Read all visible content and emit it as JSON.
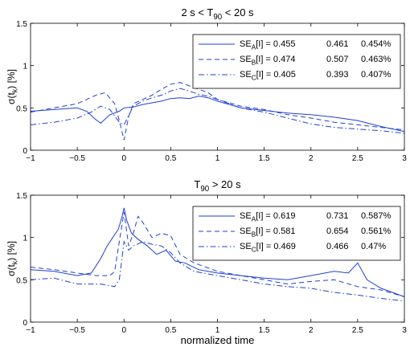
{
  "chart_data": [
    {
      "type": "line",
      "title": {
        "pre": "2 s < T",
        "sub": "90",
        "post": " < 20 s"
      },
      "xlabel": "",
      "ylabel": {
        "pre": "σ(t",
        "sub": "k",
        "post": ") [%]"
      },
      "xlim": [
        -1,
        3
      ],
      "ylim": [
        0,
        1.5
      ],
      "xticks": [
        -1,
        -0.5,
        0,
        0.5,
        1,
        1.5,
        2,
        2.5,
        3
      ],
      "xtick_labels": [
        "−1",
        "−0.5",
        "0",
        "0.5",
        "1",
        "1.5",
        "2",
        "2.5",
        "3"
      ],
      "yticks": [
        0,
        0.5,
        1,
        1.5
      ],
      "ytick_labels": [
        "0",
        "0.5",
        "1",
        "1.5"
      ],
      "grid": false,
      "legend_placement": "top-right",
      "series": [
        {
          "name": "SE_A[I]",
          "label_pre": "SE",
          "label_sub": "A",
          "label_post": "[I] = 0.455",
          "v1": "0.461",
          "v2": "0.454%",
          "color": "#1f3fd6",
          "dash": "solid",
          "x": [
            -1,
            -0.75,
            -0.5,
            -0.4,
            -0.3,
            -0.25,
            -0.15,
            -0.05,
            0,
            0.1,
            0.2,
            0.3,
            0.4,
            0.5,
            0.6,
            0.7,
            0.8,
            0.9,
            1.0,
            1.1,
            1.25,
            1.5,
            1.75,
            2.0,
            2.25,
            2.5,
            2.75,
            3.0
          ],
          "y": [
            0.46,
            0.48,
            0.5,
            0.46,
            0.36,
            0.32,
            0.42,
            0.46,
            0.5,
            0.51,
            0.54,
            0.56,
            0.58,
            0.61,
            0.62,
            0.61,
            0.64,
            0.62,
            0.58,
            0.55,
            0.5,
            0.47,
            0.44,
            0.42,
            0.39,
            0.35,
            0.28,
            0.22
          ]
        },
        {
          "name": "SE_B[I]",
          "label_pre": "SE",
          "label_sub": "B",
          "label_post": "[I] = 0.474",
          "v1": "0.507",
          "v2": "0.463%",
          "color": "#1f3fd6",
          "dash": "6,4",
          "x": [
            -1,
            -0.75,
            -0.5,
            -0.4,
            -0.3,
            -0.2,
            -0.1,
            -0.05,
            0,
            0.05,
            0.1,
            0.2,
            0.3,
            0.4,
            0.5,
            0.6,
            0.7,
            0.8,
            0.9,
            1.0,
            1.25,
            1.5,
            1.75,
            2.0,
            2.25,
            2.5,
            2.75,
            3.0
          ],
          "y": [
            0.45,
            0.5,
            0.55,
            0.6,
            0.65,
            0.68,
            0.55,
            0.35,
            0.12,
            0.4,
            0.55,
            0.6,
            0.65,
            0.72,
            0.78,
            0.8,
            0.76,
            0.72,
            0.68,
            0.6,
            0.52,
            0.48,
            0.42,
            0.38,
            0.33,
            0.3,
            0.27,
            0.24
          ]
        },
        {
          "name": "SE_C[I]",
          "label_pre": "SE",
          "label_sub": "C",
          "label_post": "[I] = 0.405",
          "v1": "0.393",
          "v2": "0.407%",
          "color": "#1f3fd6",
          "dash": "7,3,1.5,3",
          "x": [
            -1,
            -0.75,
            -0.5,
            -0.35,
            -0.25,
            -0.15,
            -0.05,
            0,
            0.1,
            0.2,
            0.3,
            0.4,
            0.5,
            0.6,
            0.7,
            0.8,
            0.9,
            1.0,
            1.25,
            1.5,
            1.75,
            2.0,
            2.25,
            2.5,
            2.75,
            3.0
          ],
          "y": [
            0.3,
            0.33,
            0.38,
            0.45,
            0.52,
            0.48,
            0.33,
            0.3,
            0.52,
            0.58,
            0.62,
            0.65,
            0.7,
            0.73,
            0.7,
            0.66,
            0.64,
            0.6,
            0.5,
            0.45,
            0.38,
            0.31,
            0.27,
            0.25,
            0.23,
            0.2
          ]
        }
      ]
    },
    {
      "type": "line",
      "title": {
        "pre": "T",
        "sub": "90",
        "post": " > 20 s"
      },
      "xlabel": "normalized time",
      "ylabel": {
        "pre": "σ(t",
        "sub": "k",
        "post": ") [%]"
      },
      "xlim": [
        -1,
        3
      ],
      "ylim": [
        0,
        1.5
      ],
      "xticks": [
        -1,
        -0.5,
        0,
        0.5,
        1,
        1.5,
        2,
        2.5,
        3
      ],
      "xtick_labels": [
        "−1",
        "−0.5",
        "0",
        "0.5",
        "1",
        "1.5",
        "2",
        "2.5",
        "3"
      ],
      "yticks": [
        0,
        0.5,
        1,
        1.5
      ],
      "ytick_labels": [
        "0",
        "0.5",
        "1",
        "1.5"
      ],
      "grid": false,
      "legend_placement": "top-right",
      "series": [
        {
          "name": "SE_A[I]",
          "label_pre": "SE",
          "label_sub": "A",
          "label_post": "[I] = 0.619",
          "v1": "0.731",
          "v2": "0.587%",
          "color": "#1f3fd6",
          "dash": "solid",
          "x": [
            -1,
            -0.75,
            -0.5,
            -0.35,
            -0.25,
            -0.18,
            -0.12,
            -0.06,
            -0.02,
            0,
            0.03,
            0.08,
            0.15,
            0.25,
            0.35,
            0.45,
            0.55,
            0.65,
            0.8,
            1.0,
            1.25,
            1.5,
            1.75,
            2.0,
            2.25,
            2.4,
            2.5,
            2.6,
            2.75,
            3.0
          ],
          "y": [
            0.62,
            0.6,
            0.55,
            0.58,
            0.75,
            0.9,
            1.0,
            1.1,
            1.25,
            1.35,
            1.2,
            1.05,
            0.98,
            0.9,
            0.8,
            0.85,
            0.72,
            0.7,
            0.62,
            0.58,
            0.55,
            0.52,
            0.5,
            0.55,
            0.6,
            0.58,
            0.7,
            0.5,
            0.4,
            0.3
          ]
        },
        {
          "name": "SE_B[I]",
          "label_pre": "SE",
          "label_sub": "B",
          "label_post": "[I] = 0.581",
          "v1": "0.654",
          "v2": "0.561%",
          "color": "#1f3fd6",
          "dash": "6,4",
          "x": [
            -1,
            -0.75,
            -0.5,
            -0.3,
            -0.15,
            -0.1,
            -0.05,
            0,
            0.05,
            0.1,
            0.15,
            0.2,
            0.3,
            0.4,
            0.5,
            0.6,
            0.75,
            1.0,
            1.25,
            1.5,
            1.75,
            2.0,
            2.25,
            2.5,
            2.75,
            3.0
          ],
          "y": [
            0.65,
            0.62,
            0.58,
            0.55,
            0.55,
            0.6,
            0.95,
            1.3,
            0.9,
            1.05,
            1.25,
            1.18,
            1.0,
            1.05,
            1.02,
            0.8,
            0.7,
            0.6,
            0.55,
            0.5,
            0.45,
            0.48,
            0.5,
            0.42,
            0.38,
            0.3
          ]
        },
        {
          "name": "SE_C[I]",
          "label_pre": "SE",
          "label_sub": "C",
          "label_post": "[I] = 0.469",
          "v1": "0.466",
          "v2": "0.47%",
          "color": "#1f3fd6",
          "dash": "7,3,1.5,3",
          "x": [
            -1,
            -0.75,
            -0.5,
            -0.25,
            -0.1,
            -0.05,
            0,
            0.05,
            0.1,
            0.2,
            0.3,
            0.4,
            0.5,
            0.6,
            0.75,
            1.0,
            1.25,
            1.5,
            1.75,
            2.0,
            2.25,
            2.5,
            2.75,
            3.0
          ],
          "y": [
            0.5,
            0.52,
            0.45,
            0.45,
            0.42,
            0.5,
            0.95,
            0.85,
            0.9,
            0.95,
            0.92,
            0.9,
            0.82,
            0.7,
            0.6,
            0.55,
            0.5,
            0.45,
            0.42,
            0.4,
            0.35,
            0.32,
            0.28,
            0.25
          ]
        }
      ]
    }
  ]
}
